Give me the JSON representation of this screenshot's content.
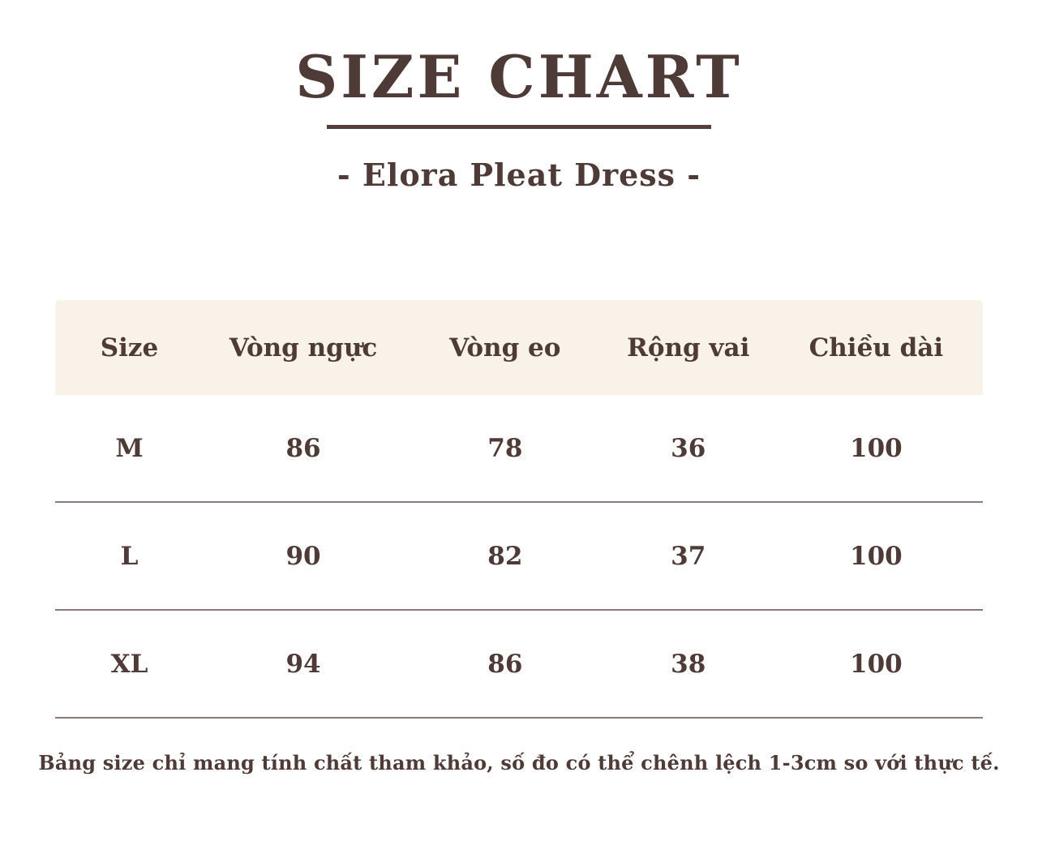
{
  "page": {
    "title": "SIZE CHART",
    "subtitle": "- Elora Pleat Dress -",
    "footnote": "Bảng size chỉ mang tính chất tham khảo, số đo có thể chênh lệch 1-3cm so với thực tế."
  },
  "colors": {
    "text": "#4e3a36",
    "header_background": "#f8f2e9",
    "divider": "#8b7a76",
    "title_rule": "#553f3b",
    "page_background": "#ffffff"
  },
  "chart_data": {
    "type": "table",
    "title": "SIZE CHART",
    "subtitle": "Elora Pleat Dress",
    "columns": [
      "Size",
      "Vòng ngực",
      "Vòng eo",
      "Rộng vai",
      "Chiều dài"
    ],
    "rows": [
      [
        "M",
        "86",
        "78",
        "36",
        "100"
      ],
      [
        "L",
        "90",
        "82",
        "37",
        "100"
      ],
      [
        "XL",
        "94",
        "86",
        "38",
        "100"
      ]
    ],
    "note": "Bảng size chỉ mang tính chất tham khảo, số đo có thể chênh lệch 1-3cm so với thực tế."
  }
}
